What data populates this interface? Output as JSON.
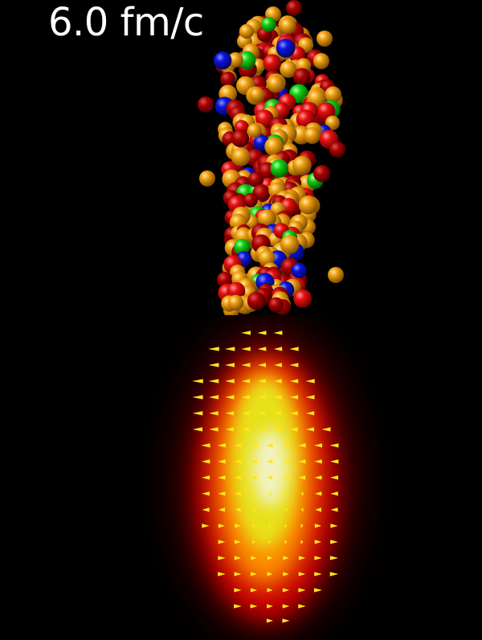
{
  "time_label": "6.0 fm/c",
  "particle_colors": {
    "orange": "#f0a012",
    "darkred": "#a80000",
    "red": "#e81010",
    "blue": "#0a14dc",
    "green": "#10d010"
  },
  "field_colors": {
    "core": "#f4f4dc",
    "yellow": "#e6e61e",
    "orange": "#ff9600",
    "red": "#d20000",
    "darkred": "#3c0000",
    "arrow": "#ffe61e"
  }
}
